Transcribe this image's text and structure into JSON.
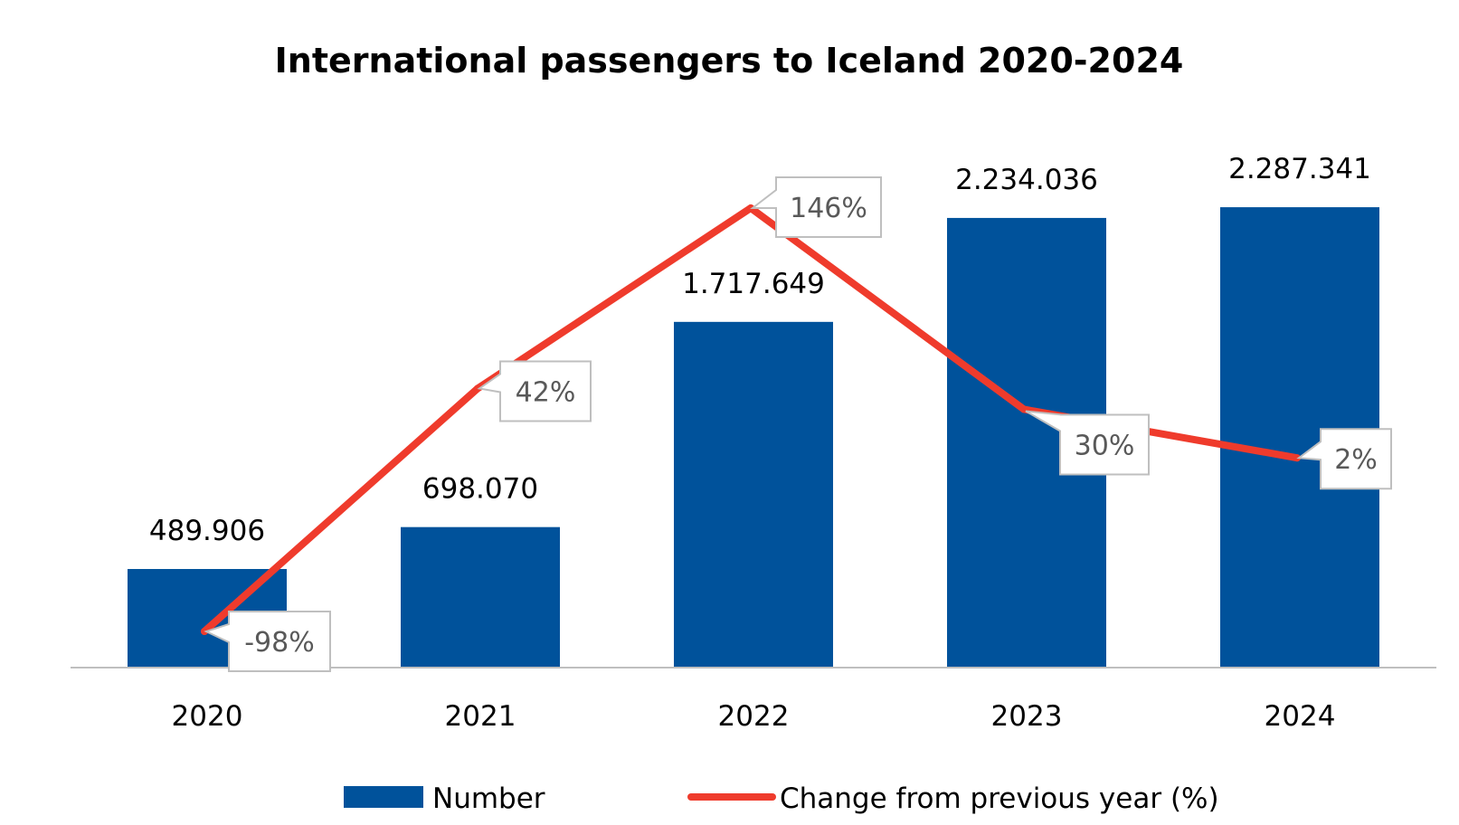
{
  "chart_data": {
    "type": "bar",
    "title": "International passengers to Iceland 2020-2024",
    "categories": [
      "2020",
      "2021",
      "2022",
      "2023",
      "2024"
    ],
    "series": [
      {
        "name": "Number",
        "type": "bar",
        "color": "#00529b",
        "values": [
          489906,
          698070,
          1717649,
          2234036,
          2287341
        ],
        "labels": [
          "489.906",
          "698.070",
          "1.717.649",
          "2.234.036",
          "2.287.341"
        ]
      },
      {
        "name": "Change from previous year (%)",
        "type": "line",
        "color": "#ef3b2c",
        "values": [
          -98,
          42,
          146,
          30,
          2
        ],
        "labels": [
          "-98%",
          "42%",
          "146%",
          "30%",
          "2%"
        ]
      }
    ],
    "legend_position": "bottom",
    "grid": false
  }
}
